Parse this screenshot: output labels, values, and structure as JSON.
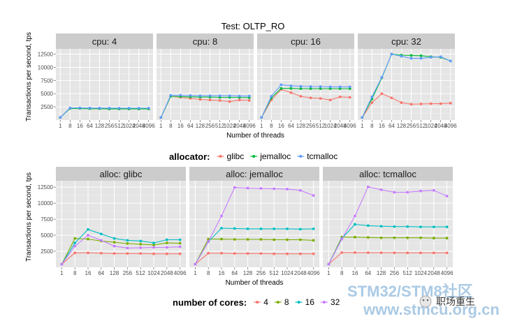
{
  "chart_data": [
    {
      "type": "line",
      "title": "Test:  OLTP_RO",
      "facet_prefix": "cpu: ",
      "facets": [
        "4",
        "8",
        "16",
        "32"
      ],
      "x": [
        "1",
        "8",
        "16",
        "64",
        "128",
        "256",
        "512",
        "1024",
        "2048",
        "4096"
      ],
      "xlabel": "Number of threads",
      "ylabel": "Transactions per second, tps",
      "ylim": [
        0,
        13500
      ],
      "yticks": [
        "2500",
        "5000",
        "7500",
        "10000",
        "12500"
      ],
      "legend_title": "allocator:",
      "legend_entries": [
        "glibc",
        "jemalloc",
        "tcmalloc"
      ],
      "series_colors": [
        "#F8766D",
        "#00BA38",
        "#619CFF"
      ],
      "panels": [
        {
          "facet": "4",
          "series": [
            {
              "name": "glibc",
              "values": [
                480,
                2250,
                2250,
                2200,
                2200,
                2150,
                2150,
                2150,
                2150,
                2150
              ]
            },
            {
              "name": "jemalloc",
              "values": [
                480,
                2200,
                2200,
                2150,
                2150,
                2100,
                2100,
                2100,
                2100,
                2100
              ]
            },
            {
              "name": "tcmalloc",
              "values": [
                500,
                2300,
                2300,
                2280,
                2270,
                2260,
                2250,
                2250,
                2250,
                2250
              ]
            }
          ]
        },
        {
          "facet": "8",
          "series": [
            {
              "name": "glibc",
              "values": [
                480,
                4500,
                4300,
                4100,
                3900,
                3800,
                3700,
                3500,
                3800,
                3700
              ]
            },
            {
              "name": "jemalloc",
              "values": [
                480,
                4500,
                4450,
                4400,
                4350,
                4350,
                4300,
                4300,
                4300,
                4250
              ]
            },
            {
              "name": "tcmalloc",
              "values": [
                480,
                4700,
                4700,
                4650,
                4600,
                4600,
                4600,
                4600,
                4550,
                4550
              ]
            }
          ]
        },
        {
          "facet": "16",
          "series": [
            {
              "name": "glibc",
              "values": [
                480,
                3800,
                5800,
                5200,
                4500,
                4200,
                4100,
                3800,
                4400,
                4300
              ]
            },
            {
              "name": "jemalloc",
              "values": [
                480,
                4200,
                6000,
                6000,
                5950,
                5950,
                5950,
                5950,
                5950,
                5950
              ]
            },
            {
              "name": "tcmalloc",
              "values": [
                480,
                4500,
                6700,
                6500,
                6400,
                6350,
                6350,
                6300,
                6300,
                6300
              ]
            }
          ]
        },
        {
          "facet": "32",
          "series": [
            {
              "name": "glibc",
              "values": [
                480,
                3300,
                5000,
                4200,
                3300,
                3000,
                3050,
                3100,
                3100,
                3200
              ]
            },
            {
              "name": "jemalloc",
              "values": [
                480,
                4000,
                8000,
                12500,
                12300,
                12250,
                12200,
                12000,
                11900,
                11200
              ]
            },
            {
              "name": "tcmalloc",
              "values": [
                480,
                4400,
                8100,
                12500,
                12100,
                11700,
                11700,
                11900,
                12000,
                11200
              ]
            }
          ]
        }
      ]
    },
    {
      "type": "line",
      "facet_prefix": "alloc: ",
      "facets": [
        "glibc",
        "jemalloc",
        "tcmalloc"
      ],
      "x": [
        "1",
        "8",
        "16",
        "64",
        "128",
        "256",
        "512",
        "1024",
        "2048",
        "4096"
      ],
      "xlabel": "Number of threads",
      "ylabel": "Transactions per second, tps",
      "ylim": [
        0,
        13500
      ],
      "yticks": [
        "2500",
        "5000",
        "7500",
        "10000",
        "12500"
      ],
      "legend_title": "number of cores:",
      "legend_entries": [
        "4",
        "8",
        "16",
        "32"
      ],
      "series_colors": [
        "#F8766D",
        "#7CAE00",
        "#00BFC4",
        "#C77CFF"
      ],
      "panels": [
        {
          "facet": "glibc",
          "series": [
            {
              "name": "4",
              "values": [
                480,
                2250,
                2250,
                2200,
                2150,
                2150,
                2150,
                2100,
                2100,
                2100
              ]
            },
            {
              "name": "8",
              "values": [
                480,
                4500,
                4400,
                4100,
                3900,
                3700,
                3600,
                3500,
                3800,
                3750
              ]
            },
            {
              "name": "16",
              "values": [
                480,
                3800,
                5900,
                5200,
                4500,
                4200,
                4100,
                3800,
                4300,
                4300
              ]
            },
            {
              "name": "32",
              "values": [
                480,
                3300,
                5000,
                4200,
                3300,
                3000,
                3050,
                3100,
                3100,
                3200
              ]
            }
          ]
        },
        {
          "facet": "jemalloc",
          "series": [
            {
              "name": "4",
              "values": [
                480,
                2200,
                2200,
                2150,
                2150,
                2150,
                2100,
                2100,
                2100,
                2100
              ]
            },
            {
              "name": "8",
              "values": [
                480,
                4400,
                4400,
                4350,
                4350,
                4350,
                4300,
                4300,
                4300,
                4200
              ]
            },
            {
              "name": "16",
              "values": [
                480,
                4000,
                6100,
                6050,
                6000,
                6000,
                6000,
                6000,
                5950,
                6000
              ]
            },
            {
              "name": "32",
              "values": [
                480,
                4000,
                8000,
                12450,
                12350,
                12300,
                12250,
                12200,
                12000,
                11200
              ]
            }
          ]
        },
        {
          "facet": "tcmalloc",
          "series": [
            {
              "name": "4",
              "values": [
                480,
                2300,
                2300,
                2280,
                2270,
                2260,
                2250,
                2250,
                2250,
                2250
              ]
            },
            {
              "name": "8",
              "values": [
                480,
                4700,
                4700,
                4650,
                4600,
                4600,
                4600,
                4600,
                4550,
                4550
              ]
            },
            {
              "name": "16",
              "values": [
                480,
                4500,
                6700,
                6500,
                6400,
                6350,
                6350,
                6300,
                6300,
                6300
              ]
            },
            {
              "name": "32",
              "values": [
                480,
                4400,
                8000,
                12550,
                12100,
                11700,
                11700,
                11900,
                12000,
                11100
              ]
            }
          ]
        }
      ]
    }
  ],
  "watermark": {
    "site_name": "STM32/STM8社区",
    "site_url": "www.stmcu.org.cn",
    "wechat_name": "职场重生"
  }
}
